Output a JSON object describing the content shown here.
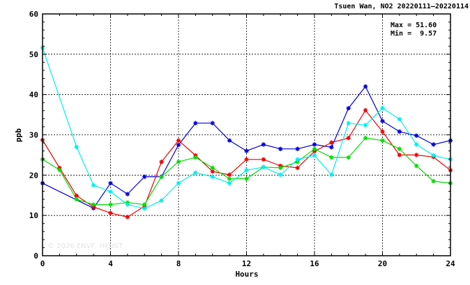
{
  "chart_data": {
    "type": "line",
    "title": "Tsuen Wan, NO2 20220111–20220114",
    "xlabel": "Hours",
    "ylabel": "ppb",
    "xlim": [
      0,
      24
    ],
    "ylim": [
      0,
      60
    ],
    "xticks": [
      0,
      4,
      8,
      12,
      16,
      20,
      24
    ],
    "yticks": [
      0,
      10,
      20,
      30,
      40,
      50,
      60
    ],
    "grid": true,
    "stats": {
      "max_label": "Max = 51.60",
      "min_label": "Min =  9.57"
    },
    "watermark": "© 2026 ENVF, HKUST",
    "series": [
      {
        "color": "#0000dd",
        "x": [
          0,
          3,
          4,
          5,
          6,
          7,
          8,
          9,
          10,
          11,
          12,
          13,
          14,
          15,
          16,
          17,
          18,
          19,
          20,
          21,
          22,
          23,
          24
        ],
        "y": [
          18.0,
          11.8,
          18.0,
          15.3,
          19.6,
          19.6,
          27.5,
          32.9,
          32.9,
          28.6,
          26.0,
          27.6,
          26.5,
          26.5,
          27.6,
          26.9,
          36.6,
          42.0,
          33.4,
          30.8,
          29.8,
          27.6,
          28.6
        ]
      },
      {
        "color": "#ee0000",
        "x": [
          0,
          1,
          2,
          3,
          4,
          5,
          6,
          7,
          8,
          9,
          10,
          11,
          12,
          13,
          14,
          15,
          16,
          17,
          18,
          19,
          20,
          21,
          22,
          23,
          24
        ],
        "y": [
          28.7,
          21.8,
          14.9,
          12.1,
          10.6,
          9.6,
          12.3,
          23.3,
          28.6,
          24.9,
          20.9,
          20.1,
          23.9,
          23.9,
          22.3,
          21.8,
          25.9,
          28.1,
          29.2,
          36.1,
          30.8,
          25.0,
          25.0,
          24.5,
          21.2
        ]
      },
      {
        "color": "#00dd00",
        "x": [
          0,
          1,
          2,
          3,
          4,
          5,
          6,
          7,
          8,
          9,
          10,
          11,
          12,
          13,
          14,
          15,
          16,
          17,
          18,
          19,
          20,
          21,
          22,
          23,
          24
        ],
        "y": [
          23.9,
          21.3,
          14.0,
          12.7,
          12.7,
          13.2,
          12.7,
          19.6,
          23.3,
          24.4,
          21.8,
          19.1,
          19.1,
          22.0,
          21.8,
          23.3,
          26.5,
          24.4,
          24.4,
          29.2,
          28.6,
          26.5,
          22.3,
          18.5,
          18.0
        ]
      },
      {
        "color": "#00eeee",
        "x": [
          0,
          2,
          3,
          4,
          5,
          6,
          7,
          8,
          9,
          10,
          11,
          12,
          13,
          14,
          15,
          16,
          17,
          18,
          19,
          20,
          21,
          22,
          23,
          24
        ],
        "y": [
          51.6,
          27.0,
          17.5,
          15.9,
          12.7,
          11.7,
          13.7,
          18.0,
          20.6,
          19.6,
          18.0,
          21.2,
          22.0,
          20.1,
          23.9,
          24.9,
          20.1,
          32.9,
          32.4,
          36.6,
          33.9,
          27.6,
          24.9,
          23.9
        ]
      }
    ]
  }
}
